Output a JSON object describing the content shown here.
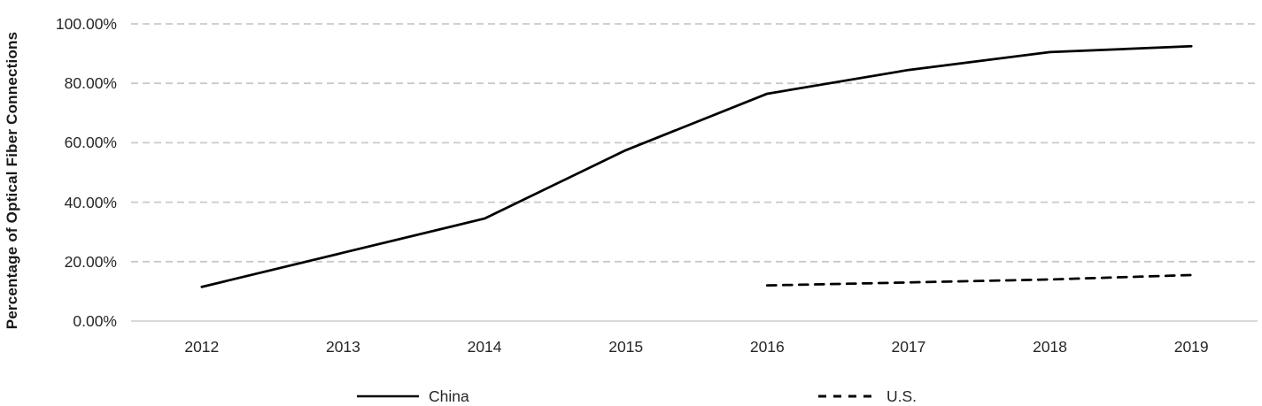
{
  "chart_data": {
    "type": "line",
    "title": "",
    "xlabel": "",
    "ylabel": "Percentage of Optical Fiber Connections",
    "categories": [
      "2012",
      "2013",
      "2014",
      "2015",
      "2016",
      "2017",
      "2018",
      "2019"
    ],
    "series": [
      {
        "name": "China",
        "style": "solid",
        "color": "#000000",
        "values": [
          11.5,
          23,
          34.5,
          57.5,
          76.5,
          84.5,
          90.5,
          92.5
        ]
      },
      {
        "name": "U.S.",
        "style": "dashed",
        "color": "#000000",
        "values": [
          null,
          null,
          null,
          null,
          12,
          13,
          14,
          15.5
        ]
      }
    ],
    "yticks": [
      {
        "value": 100,
        "label": "100.00%"
      },
      {
        "value": 80,
        "label": "80.00%"
      },
      {
        "value": 60,
        "label": "60.00%"
      },
      {
        "value": 40,
        "label": "40.00%"
      },
      {
        "value": 20,
        "label": "20.00%"
      },
      {
        "value": 0,
        "label": "0.00%"
      }
    ],
    "ylim": [
      0,
      100
    ],
    "grid": "horizontal-dashed",
    "gridline_color": "#c9c9c9",
    "axis_line_color": "#d9d9d9",
    "legend_position": "bottom"
  }
}
